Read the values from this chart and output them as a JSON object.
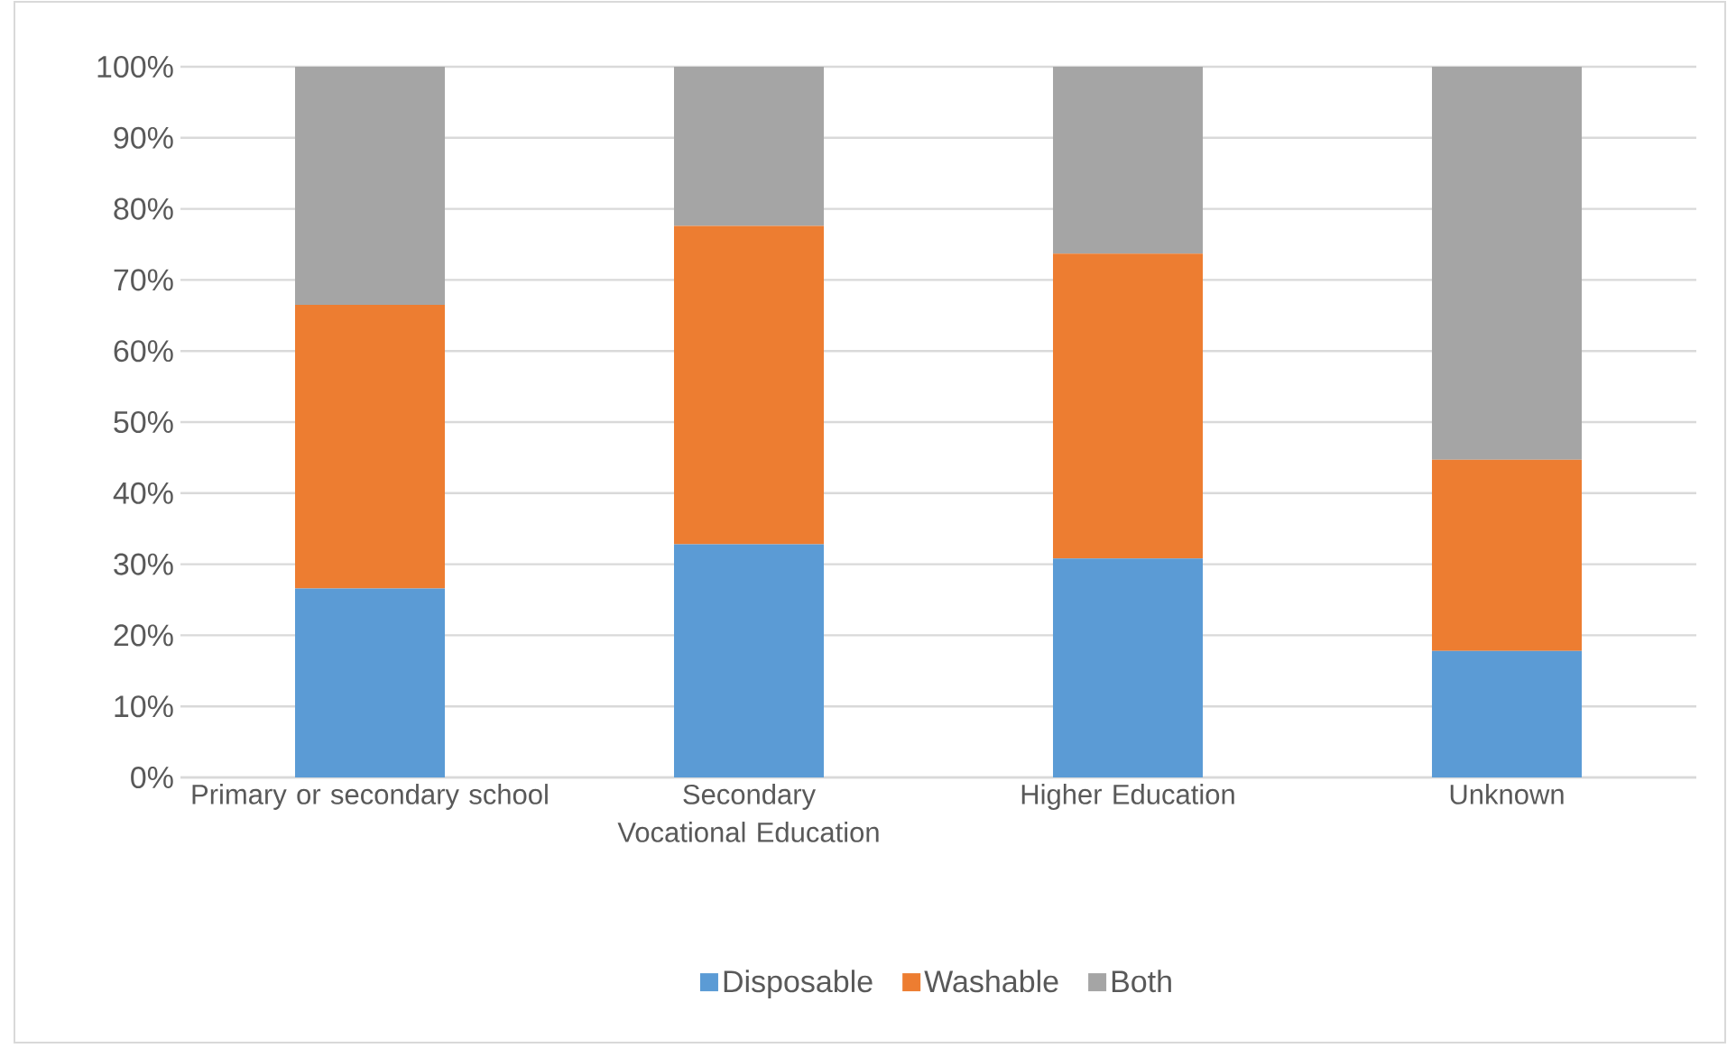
{
  "chart_data": {
    "type": "bar",
    "stacked": true,
    "categories": [
      "Primary or secondary school",
      "Secondary Vocational Education",
      "Higher Education",
      "Unknown"
    ],
    "series": [
      {
        "name": "Disposable",
        "color": "#5b9bd5",
        "values": [
          26.6,
          32.8,
          30.8,
          17.8
        ]
      },
      {
        "name": "Washable",
        "color": "#ed7d31",
        "values": [
          39.9,
          44.8,
          42.9,
          26.9
        ]
      },
      {
        "name": "Both",
        "color": "#a5a5a5",
        "values": [
          33.5,
          22.4,
          26.3,
          55.3
        ]
      }
    ],
    "ylim": [
      0,
      100
    ],
    "yticks": [
      {
        "value": 0,
        "label": "0%"
      },
      {
        "value": 10,
        "label": "10%"
      },
      {
        "value": 20,
        "label": "20%"
      },
      {
        "value": 30,
        "label": "30%"
      },
      {
        "value": 40,
        "label": "40%"
      },
      {
        "value": 50,
        "label": "50%"
      },
      {
        "value": 60,
        "label": "60%"
      },
      {
        "value": 70,
        "label": "70%"
      },
      {
        "value": 80,
        "label": "80%"
      },
      {
        "value": 90,
        "label": "90%"
      },
      {
        "value": 100,
        "label": "100%"
      }
    ],
    "grid": "y",
    "legend": "bottom"
  }
}
